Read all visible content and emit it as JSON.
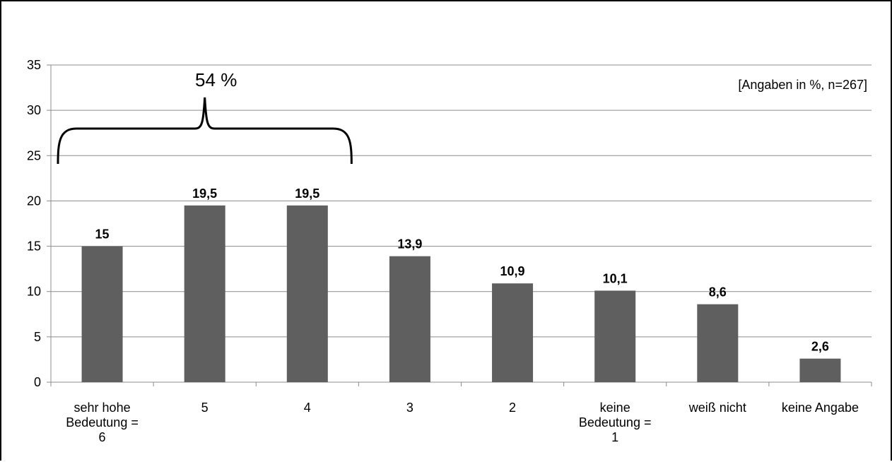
{
  "chart_data": {
    "type": "bar",
    "categories": [
      [
        "sehr hohe",
        "Bedeutung =",
        "6"
      ],
      [
        "5"
      ],
      [
        "4"
      ],
      [
        "3"
      ],
      [
        "2"
      ],
      [
        "keine",
        "Bedeutung =",
        "1"
      ],
      [
        "weiß nicht"
      ],
      [
        "keine Angabe"
      ]
    ],
    "values": [
      15,
      19.5,
      19.5,
      13.9,
      10.9,
      10.1,
      8.6,
      2.6
    ],
    "value_labels": [
      "15",
      "19,5",
      "19,5",
      "13,9",
      "10,9",
      "10,1",
      "8,6",
      "2,6"
    ],
    "ylim": [
      0,
      35
    ],
    "yticks": [
      0,
      5,
      10,
      15,
      20,
      25,
      30,
      35
    ],
    "grid": true,
    "bar_color": "#5f5f5f",
    "note": "[Angaben in %, n=267]",
    "annotation": {
      "text": "54 %",
      "spans_categories": [
        0,
        2
      ]
    }
  }
}
